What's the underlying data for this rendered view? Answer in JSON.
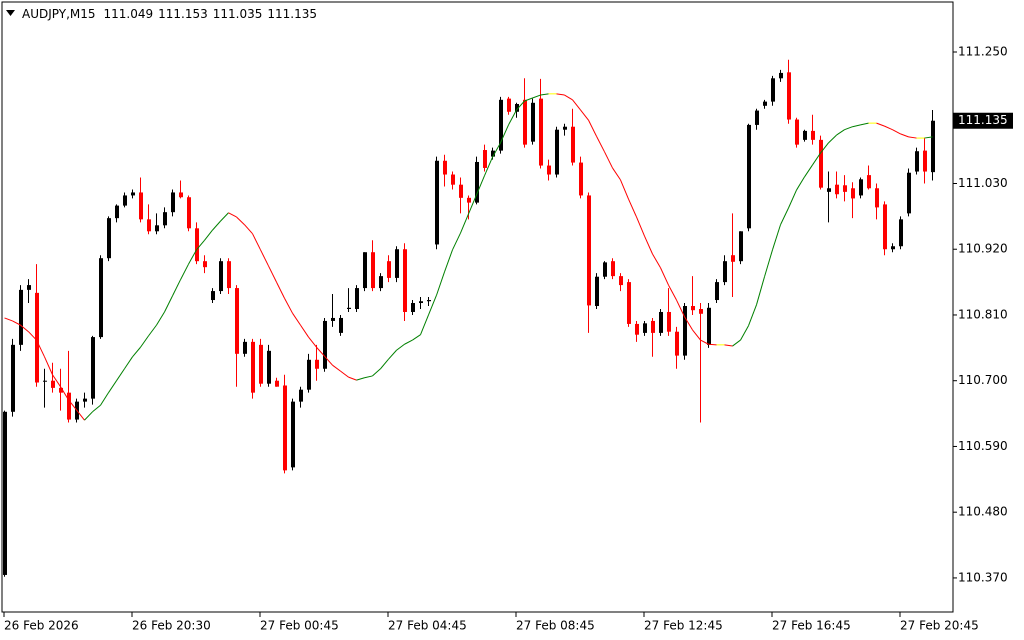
{
  "chart_data": {
    "type": "candlestick",
    "symbol": "AUDJPY,M15",
    "bull_color": "#000000",
    "bear_color": "#ff0000",
    "ma_up_color": "#008000",
    "ma_down_color": "#ff0000",
    "ma_flat_color": "#ffff00",
    "ylim": [
      110.313,
      111.332
    ],
    "yticks": [
      {
        "value": 110.37,
        "label": "110.370"
      },
      {
        "value": 110.48,
        "label": "110.480"
      },
      {
        "value": 110.59,
        "label": "110.590"
      },
      {
        "value": 110.7,
        "label": "110.700"
      },
      {
        "value": 110.81,
        "label": "110.810"
      },
      {
        "value": 110.92,
        "label": "110.920"
      },
      {
        "value": 111.03,
        "label": "111.030"
      },
      {
        "value": 111.25,
        "label": "111.250"
      }
    ],
    "categories": [
      "26 Feb 2026",
      null,
      null,
      null,
      null,
      null,
      null,
      null,
      null,
      null,
      null,
      null,
      null,
      null,
      null,
      null,
      "26 Feb 20:30",
      null,
      null,
      null,
      null,
      null,
      null,
      null,
      null,
      null,
      null,
      null,
      null,
      null,
      null,
      null,
      "27 Feb 00:45",
      null,
      null,
      null,
      null,
      null,
      null,
      null,
      null,
      null,
      null,
      null,
      null,
      null,
      null,
      null,
      "27 Feb 04:45",
      null,
      null,
      null,
      null,
      null,
      null,
      null,
      null,
      null,
      null,
      null,
      null,
      null,
      null,
      null,
      "27 Feb 08:45",
      null,
      null,
      null,
      null,
      null,
      null,
      null,
      null,
      null,
      null,
      null,
      null,
      null,
      null,
      null,
      "27 Feb 12:45",
      null,
      null,
      null,
      null,
      null,
      null,
      null,
      null,
      null,
      null,
      null,
      null,
      null,
      null,
      null,
      "27 Feb 16:45",
      null,
      null,
      null,
      null,
      null,
      null,
      null,
      null,
      null,
      null,
      null,
      null,
      null,
      null,
      null,
      "27 Feb 20:45",
      null,
      null,
      null,
      null
    ],
    "open": [
      110.375,
      110.648,
      110.76,
      110.852,
      110.847,
      110.7,
      110.7,
      110.688,
      110.68,
      110.635,
      110.665,
      110.67,
      110.773,
      110.905,
      110.972,
      110.993,
      111.01,
      111.015,
      110.97,
      110.95,
      110.96,
      110.982,
      111.015,
      111.007,
      110.955,
      110.9,
      110.835,
      110.85,
      110.9,
      110.855,
      110.745,
      110.765,
      110.76,
      110.695,
      110.7,
      110.692,
      110.555,
      110.665,
      110.685,
      110.735,
      110.72,
      110.8,
      110.78,
      110.82,
      110.82,
      110.855,
      110.915,
      110.855,
      110.9,
      110.872,
      110.92,
      110.815,
      110.83,
      110.833,
      110.928,
      111.068,
      111.045,
      111.028,
      111.006,
      110.998,
      111.086,
      111.075,
      111.085,
      111.172,
      111.15,
      111.17,
      111.1,
      111.172,
      111.06,
      111.045,
      111.12,
      111.125,
      111.065,
      111.01,
      110.825,
      110.874,
      110.9,
      110.875,
      110.865,
      110.795,
      110.78,
      110.8,
      110.78,
      110.815,
      110.782,
      110.742,
      110.825,
      110.82,
      110.76,
      110.835,
      110.865,
      110.91,
      110.9,
      110.955,
      111.128,
      111.16,
      111.167,
      111.206,
      111.216,
      111.137,
      111.103,
      111.118,
      111.103,
      111.016,
      111.028,
      111.027,
      111.022,
      111.01,
      111.044,
      111.022,
      110.995,
      110.92,
      110.925,
      110.98,
      111.05,
      111.085,
      111.049
    ],
    "high": [
      110.65,
      110.77,
      110.86,
      110.87,
      110.895,
      110.72,
      110.73,
      110.72,
      110.75,
      110.67,
      110.68,
      110.775,
      110.91,
      110.975,
      110.995,
      111.015,
      111.02,
      111.04,
      110.995,
      110.98,
      110.99,
      111.02,
      111.035,
      111.01,
      110.965,
      110.91,
      110.855,
      110.905,
      110.905,
      110.86,
      110.77,
      110.77,
      110.77,
      110.76,
      110.705,
      110.71,
      110.67,
      110.69,
      110.745,
      110.76,
      110.805,
      110.845,
      110.81,
      110.855,
      110.86,
      110.915,
      110.935,
      110.88,
      110.91,
      110.925,
      110.93,
      110.835,
      110.84,
      110.84,
      111.075,
      111.078,
      111.05,
      111.04,
      111.01,
      111.075,
      111.095,
      111.09,
      111.175,
      111.175,
      111.165,
      111.206,
      111.172,
      111.205,
      111.07,
      111.125,
      111.13,
      111.155,
      111.075,
      111.015,
      110.88,
      110.9,
      110.905,
      110.88,
      110.87,
      110.8,
      110.8,
      110.805,
      110.82,
      110.855,
      110.79,
      110.83,
      110.875,
      110.83,
      110.83,
      110.87,
      110.91,
      110.98,
      110.95,
      111.13,
      111.155,
      111.17,
      111.21,
      111.22,
      111.237,
      111.14,
      111.12,
      111.145,
      111.11,
      111.05,
      111.05,
      111.044,
      111.032,
      111.04,
      111.06,
      111.03,
      111.0,
      110.93,
      110.975,
      111.055,
      111.09,
      111.107,
      111.153
    ],
    "low": [
      110.372,
      110.64,
      110.75,
      110.83,
      110.69,
      110.655,
      110.68,
      110.65,
      110.63,
      110.63,
      110.655,
      110.66,
      110.77,
      110.9,
      110.965,
      110.99,
      111.005,
      110.965,
      110.945,
      110.945,
      110.955,
      110.975,
      111.005,
      110.95,
      110.895,
      110.88,
      110.83,
      110.845,
      110.845,
      110.69,
      110.74,
      110.67,
      110.69,
      110.69,
      110.69,
      110.545,
      110.55,
      110.655,
      110.68,
      110.7,
      110.715,
      110.79,
      110.775,
      110.815,
      110.815,
      110.85,
      110.85,
      110.85,
      110.865,
      110.865,
      110.8,
      110.81,
      110.82,
      110.825,
      110.92,
      111.025,
      111.02,
      110.98,
      110.97,
      110.995,
      111.05,
      111.07,
      111.08,
      111.145,
      111.14,
      111.09,
      111.095,
      111.055,
      111.035,
      111.04,
      111.11,
      111.06,
      111.005,
      110.78,
      110.82,
      110.87,
      110.87,
      110.85,
      110.79,
      110.765,
      110.775,
      110.74,
      110.775,
      110.775,
      110.72,
      110.735,
      110.81,
      110.63,
      110.755,
      110.83,
      110.86,
      110.84,
      110.895,
      110.95,
      111.12,
      111.155,
      111.16,
      111.2,
      111.13,
      111.09,
      111.1,
      111.095,
      111.02,
      110.965,
      111.005,
      111.0,
      110.972,
      111.005,
      111.02,
      110.97,
      110.91,
      110.915,
      110.92,
      110.975,
      111.045,
      111.03,
      111.035
    ],
    "close": [
      110.648,
      110.76,
      110.852,
      110.86,
      110.697,
      110.7,
      110.688,
      110.68,
      110.635,
      110.665,
      110.67,
      110.773,
      110.905,
      110.972,
      110.993,
      111.01,
      111.015,
      110.97,
      110.95,
      110.96,
      110.982,
      111.015,
      111.007,
      110.955,
      110.9,
      110.89,
      110.85,
      110.9,
      110.855,
      110.745,
      110.765,
      110.68,
      110.695,
      110.75,
      110.69,
      110.55,
      110.665,
      110.685,
      110.735,
      110.72,
      110.8,
      110.805,
      110.805,
      110.822,
      110.855,
      110.915,
      110.855,
      110.875,
      110.872,
      110.92,
      110.815,
      110.83,
      110.833,
      110.835,
      111.068,
      111.045,
      111.028,
      111.006,
      110.998,
      111.066,
      111.056,
      111.085,
      111.17,
      111.15,
      111.163,
      111.095,
      111.165,
      111.06,
      111.045,
      111.12,
      111.125,
      111.065,
      111.01,
      110.826,
      110.874,
      110.898,
      110.875,
      110.86,
      110.795,
      110.777,
      110.796,
      110.78,
      110.815,
      110.782,
      110.742,
      110.825,
      110.818,
      110.812,
      110.822,
      110.865,
      110.9,
      110.899,
      110.95,
      111.128,
      111.152,
      111.167,
      111.206,
      111.215,
      111.137,
      111.095,
      111.118,
      111.103,
      111.023,
      111.022,
      111.012,
      111.016,
      111.005,
      111.037,
      111.022,
      110.99,
      110.92,
      110.925,
      110.97,
      111.048,
      111.084,
      111.05,
      111.135
    ],
    "ma": [
      110.805,
      110.8,
      110.793,
      110.782,
      110.768,
      110.74,
      110.71,
      110.69,
      110.668,
      110.651,
      110.634,
      110.648,
      110.659,
      110.68,
      110.7,
      110.72,
      110.74,
      110.756,
      110.775,
      110.793,
      110.815,
      110.842,
      110.869,
      110.895,
      110.919,
      110.935,
      110.952,
      110.967,
      110.981,
      110.974,
      110.961,
      110.946,
      110.919,
      110.892,
      110.865,
      110.838,
      110.813,
      110.793,
      110.773,
      110.756,
      110.741,
      110.726,
      110.716,
      110.706,
      110.701,
      110.705,
      110.708,
      110.72,
      110.736,
      110.751,
      110.761,
      110.768,
      110.777,
      110.81,
      110.843,
      110.882,
      110.919,
      110.947,
      110.979,
      111.011,
      111.043,
      111.074,
      111.098,
      111.128,
      111.153,
      111.168,
      111.173,
      111.178,
      111.18,
      111.18,
      111.178,
      111.17,
      111.153,
      111.136,
      111.109,
      111.083,
      111.056,
      111.036,
      111.004,
      110.974,
      110.942,
      110.912,
      110.889,
      110.86,
      110.835,
      110.807,
      110.785,
      110.768,
      110.761,
      110.76,
      110.76,
      110.758,
      110.768,
      110.792,
      110.827,
      110.874,
      110.919,
      110.961,
      110.989,
      111.019,
      111.041,
      111.061,
      111.081,
      111.098,
      111.111,
      111.12,
      111.125,
      111.128,
      111.131,
      111.131,
      111.126,
      111.12,
      111.113,
      111.108,
      111.106,
      111.106,
      111.108
    ]
  }
}
